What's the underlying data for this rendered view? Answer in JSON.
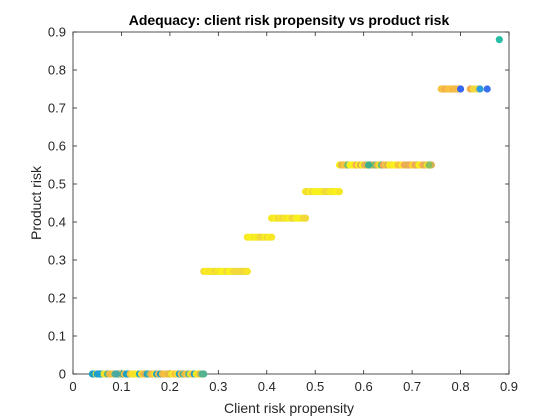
{
  "chart_data": {
    "type": "scatter",
    "title": "Adequacy: client risk propensity vs product risk",
    "xlabel": "Client risk propensity",
    "ylabel": "Product risk",
    "xlim": [
      0,
      0.9
    ],
    "ylim": [
      0,
      0.9
    ],
    "xticks": [
      "0",
      "0.1",
      "0.2",
      "0.3",
      "0.4",
      "0.5",
      "0.6",
      "0.7",
      "0.8",
      "0.9"
    ],
    "yticks": [
      "0",
      "0.1",
      "0.2",
      "0.3",
      "0.4",
      "0.5",
      "0.6",
      "0.7",
      "0.8",
      "0.9"
    ],
    "grid": false,
    "point_groups": [
      {
        "y": 0.0,
        "x_range": [
          0.04,
          0.27
        ],
        "count": 60,
        "palette": [
          "#f2e626",
          "#f8ba43",
          "#e6b845",
          "#1da0c5",
          "#55b48f",
          "#f7c340",
          "#f9e128"
        ]
      },
      {
        "y": 0.27,
        "x_range": [
          0.27,
          0.36
        ],
        "count": 20,
        "palette": [
          "#f9f11d",
          "#f6e626",
          "#f2d839"
        ]
      },
      {
        "y": 0.36,
        "x_range": [
          0.36,
          0.41
        ],
        "count": 12,
        "palette": [
          "#f9f11d",
          "#f6e626",
          "#f2d839"
        ]
      },
      {
        "y": 0.41,
        "x_range": [
          0.41,
          0.48
        ],
        "count": 16,
        "palette": [
          "#f9f11d",
          "#f6e626",
          "#f2d839"
        ]
      },
      {
        "y": 0.48,
        "x_range": [
          0.48,
          0.55
        ],
        "count": 16,
        "palette": [
          "#f9f11d",
          "#f6e626",
          "#f2d839"
        ]
      },
      {
        "y": 0.55,
        "x_range": [
          0.55,
          0.74
        ],
        "count": 45,
        "palette": [
          "#f9f11d",
          "#f6c33e",
          "#e2b250",
          "#f7a65a",
          "#6cba73",
          "#f9e128"
        ]
      },
      {
        "y": 0.75,
        "x_range": [
          0.76,
          0.8
        ],
        "count": 12,
        "palette": [
          "#f9e128",
          "#f6b14a",
          "#f7c340"
        ]
      },
      {
        "y": 0.75,
        "x_range": [
          0.82,
          0.84
        ],
        "count": 4,
        "palette": [
          "#f6b14a",
          "#f2d839"
        ]
      }
    ],
    "points": [
      {
        "x": 0.84,
        "y": 0.75,
        "color": "#2a9de0"
      },
      {
        "x": 0.855,
        "y": 0.75,
        "color": "#3a6ff0"
      },
      {
        "x": 0.8,
        "y": 0.75,
        "color": "#3566f5"
      },
      {
        "x": 0.88,
        "y": 0.88,
        "color": "#26bfa5"
      },
      {
        "x": 0.61,
        "y": 0.55,
        "color": "#3fb08a"
      },
      {
        "x": 0.735,
        "y": 0.55,
        "color": "#8cc05f"
      },
      {
        "x": 0.05,
        "y": 0.0,
        "color": "#1d9fd0"
      },
      {
        "x": 0.09,
        "y": 0.0,
        "color": "#4aa9a0"
      }
    ]
  }
}
